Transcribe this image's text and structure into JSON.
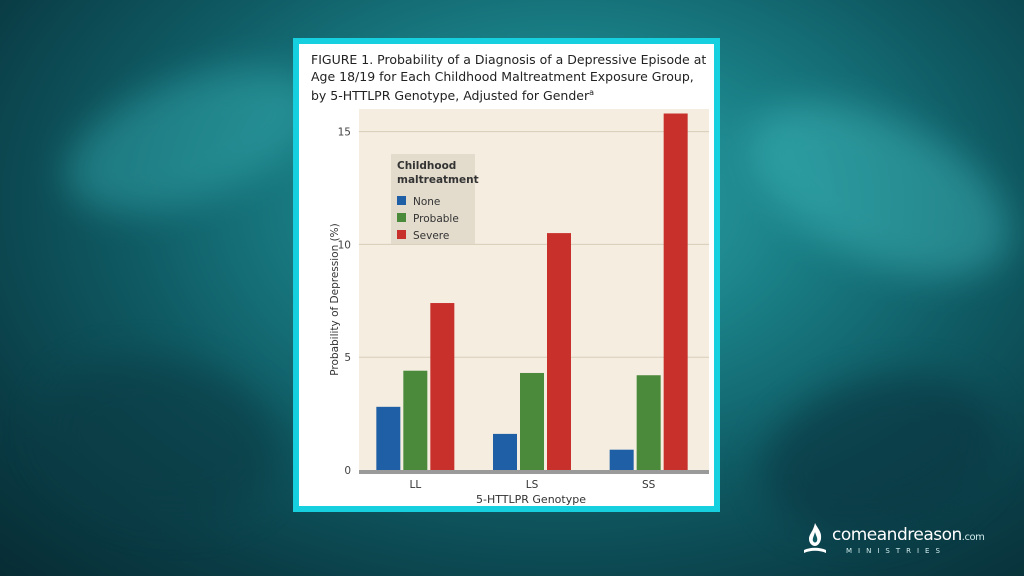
{
  "figure": {
    "title": "FIGURE 1.  Probability of a Diagnosis of a Depressive Episode at Age 18/19 for Each Childhood Maltreatment Exposure Group, by 5-HTTLPR Genotype, Adjusted for Gender",
    "title_sup": "a"
  },
  "chart_data": {
    "type": "bar",
    "categories": [
      "LL",
      "LS",
      "SS"
    ],
    "series": [
      {
        "name": "None",
        "values": [
          2.8,
          1.6,
          0.9
        ]
      },
      {
        "name": "Probable",
        "values": [
          4.4,
          4.3,
          4.2
        ]
      },
      {
        "name": "Severe",
        "values": [
          7.4,
          10.5,
          15.8
        ]
      }
    ],
    "xlabel": "5-HTTLPR Genotype",
    "ylabel": "Probability of Depression (%)",
    "ylim": [
      0,
      16
    ],
    "yticks": [
      0,
      5,
      10,
      15
    ],
    "legend_title": "Childhood maltreatment",
    "legend_placement": "top-left",
    "grid": true,
    "colors": [
      "#1f5fa5",
      "#4a8a3a",
      "#c8302b"
    ]
  },
  "branding": {
    "word": "comeandreason",
    "dotcom": ".com",
    "sub": "MINISTRIES"
  },
  "colors": {
    "frame": "#16d0e0",
    "plot_bg": "#f4ede0",
    "axis": "#9a9a9a"
  }
}
